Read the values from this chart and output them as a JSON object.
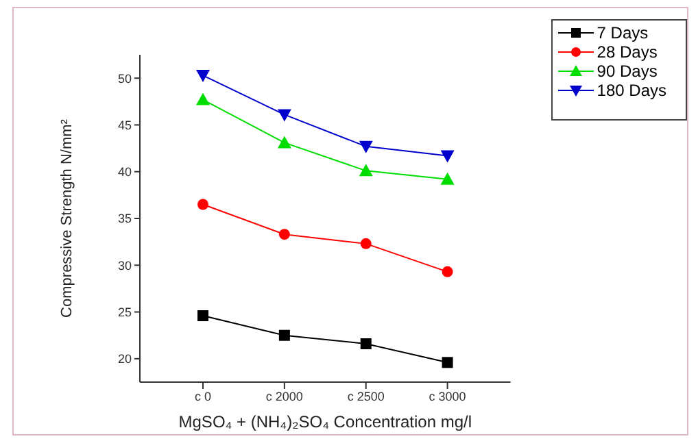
{
  "chart_data": {
    "type": "line",
    "xlabel": "MgSO₄ + (NH₄)₂SO₄ Concentration mg/l",
    "ylabel": "Compressive Strength N/mm²",
    "categories": [
      "c 0",
      "c 2000",
      "c 2500",
      "c 3000"
    ],
    "ylim": [
      17.5,
      52.5
    ],
    "yticks": [
      20,
      25,
      30,
      35,
      40,
      45,
      50
    ],
    "grid": false,
    "legend": "top right",
    "series": [
      {
        "name": "7 Days",
        "color": "#000000",
        "marker": "square",
        "values": [
          24.6,
          22.5,
          21.6,
          19.6
        ]
      },
      {
        "name": "28 Days",
        "color": "#ff0000",
        "marker": "circle",
        "values": [
          36.5,
          33.3,
          32.3,
          29.3
        ]
      },
      {
        "name": "90 Days",
        "color": "#00dd00",
        "marker": "triangle",
        "values": [
          47.7,
          43.1,
          40.1,
          39.2
        ]
      },
      {
        "name": "180 Days",
        "color": "#0000cc",
        "marker": "triangle-down",
        "values": [
          50.3,
          46.1,
          42.7,
          41.7
        ]
      }
    ]
  }
}
